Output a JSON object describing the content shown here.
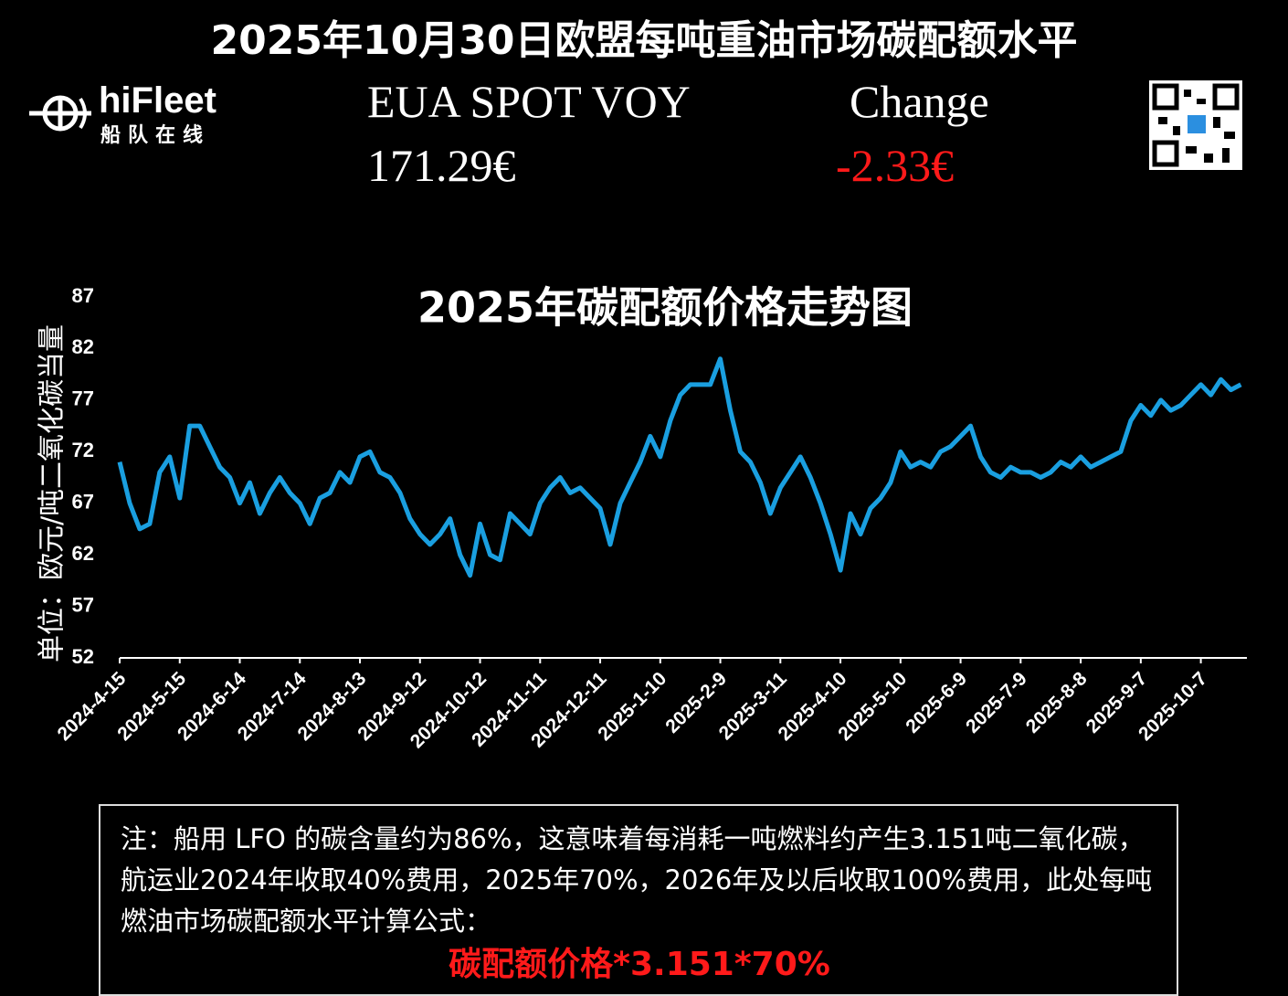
{
  "header": {
    "title": "2025年10月30日欧盟每吨重油市场碳配额水平",
    "logo": "hiFleet",
    "logo_subtitle": "船队在线",
    "price_label": "EUA SPOT VOY",
    "price": "171.29€",
    "change_label": "Change",
    "change": "-2.33€"
  },
  "chart_data": {
    "type": "line",
    "title": "2025年碳配额价格走势图",
    "y_label": "单位：欧元/吨二氧化碳当量",
    "x": [
      "2024-4-15",
      "2024-4-20",
      "2024-4-25",
      "2024-4-30",
      "2024-5-5",
      "2024-5-10",
      "2024-5-15",
      "2024-5-20",
      "2024-5-25",
      "2024-5-30",
      "2024-6-4",
      "2024-6-9",
      "2024-6-14",
      "2024-6-19",
      "2024-6-24",
      "2024-6-29",
      "2024-7-4",
      "2024-7-9",
      "2024-7-14",
      "2024-7-19",
      "2024-7-24",
      "2024-7-29",
      "2024-8-3",
      "2024-8-8",
      "2024-8-13",
      "2024-8-18",
      "2024-8-23",
      "2024-8-28",
      "2024-9-2",
      "2024-9-7",
      "2024-9-12",
      "2024-9-17",
      "2024-9-22",
      "2024-9-27",
      "2024-10-2",
      "2024-10-7",
      "2024-10-12",
      "2024-10-17",
      "2024-10-22",
      "2024-10-27",
      "2024-11-1",
      "2024-11-6",
      "2024-11-11",
      "2024-11-16",
      "2024-11-21",
      "2024-11-26",
      "2024-12-1",
      "2024-12-6",
      "2024-12-11",
      "2024-12-16",
      "2024-12-21",
      "2024-12-26",
      "2024-12-31",
      "2025-1-5",
      "2025-1-10",
      "2025-1-15",
      "2025-1-20",
      "2025-1-25",
      "2025-1-30",
      "2025-2-4",
      "2025-2-9",
      "2025-2-14",
      "2025-2-19",
      "2025-2-24",
      "2025-3-1",
      "2025-3-6",
      "2025-3-11",
      "2025-3-16",
      "2025-3-21",
      "2025-3-26",
      "2025-3-31",
      "2025-4-5",
      "2025-4-10",
      "2025-4-15",
      "2025-4-20",
      "2025-4-25",
      "2025-4-30",
      "2025-5-5",
      "2025-5-10",
      "2025-5-15",
      "2025-5-20",
      "2025-5-25",
      "2025-5-30",
      "2025-6-4",
      "2025-6-9",
      "2025-6-14",
      "2025-6-19",
      "2025-6-24",
      "2025-6-29",
      "2025-7-4",
      "2025-7-9",
      "2025-7-14",
      "2025-7-19",
      "2025-7-24",
      "2025-7-29",
      "2025-8-3",
      "2025-8-8",
      "2025-8-13",
      "2025-8-18",
      "2025-8-23",
      "2025-8-28",
      "2025-9-2",
      "2025-9-7",
      "2025-9-12",
      "2025-9-17",
      "2025-9-22",
      "2025-9-27",
      "2025-10-2",
      "2025-10-7",
      "2025-10-12",
      "2025-10-17",
      "2025-10-22",
      "2025-10-27"
    ],
    "series": [
      {
        "color": "#1a9fe0",
        "values": [
          71,
          67,
          64.5,
          65,
          70,
          71.5,
          67.5,
          74.5,
          74.5,
          72.5,
          70.5,
          69.5,
          67,
          69,
          66,
          68,
          69.5,
          68,
          67,
          65,
          67.5,
          68,
          70,
          69,
          71.5,
          72,
          70,
          69.5,
          68,
          65.5,
          64,
          63,
          64,
          65.5,
          62,
          60,
          65,
          62,
          61.5,
          66,
          65,
          64,
          67,
          68.5,
          69.5,
          68,
          68.5,
          67.5,
          66.5,
          63,
          67,
          69,
          71,
          73.5,
          71.5,
          75,
          77.5,
          78.5,
          78.5,
          78.5,
          81,
          76,
          72,
          71,
          69,
          66,
          68.5,
          70,
          71.5,
          69.5,
          67,
          64,
          60.5,
          66,
          64,
          66.5,
          67.5,
          69,
          72,
          70.5,
          71,
          70.5,
          72,
          72.5,
          73.5,
          74.5,
          71.5,
          70,
          69.5,
          70.5,
          70,
          70,
          69.5,
          70,
          71,
          70.5,
          71.5,
          70.5,
          71,
          71.5,
          72,
          75,
          76.5,
          75.5,
          77,
          76,
          76.5,
          77.5,
          78.5,
          77.5,
          79,
          78,
          78.5
        ]
      }
    ],
    "xlim": [
      "2024-4-15",
      "2025-10-30"
    ],
    "xticks": [
      "2024-4-15",
      "2024-5-15",
      "2024-6-14",
      "2024-7-14",
      "2024-8-13",
      "2024-9-12",
      "2024-10-12",
      "2024-11-11",
      "2024-12-11",
      "2025-1-10",
      "2025-2-9",
      "2025-3-11",
      "2025-4-10",
      "2025-5-10",
      "2025-6-9",
      "2025-7-9",
      "2025-8-8",
      "2025-9-7",
      "2025-10-7"
    ],
    "ylim": [
      52,
      87
    ],
    "yticks": [
      52,
      57,
      62,
      67,
      72,
      77,
      82,
      87
    ]
  },
  "note": {
    "text": "注：船用 LFO 的碳含量约为86%，这意味着每消耗一吨燃料约产生3.151吨二氧化碳，航运业2024年收取40%费用，2025年70%，2026年及以后收取100%费用，此处每吨燃油市场碳配额水平计算公式：",
    "formula": "碳配额价格*3.151*70%"
  }
}
